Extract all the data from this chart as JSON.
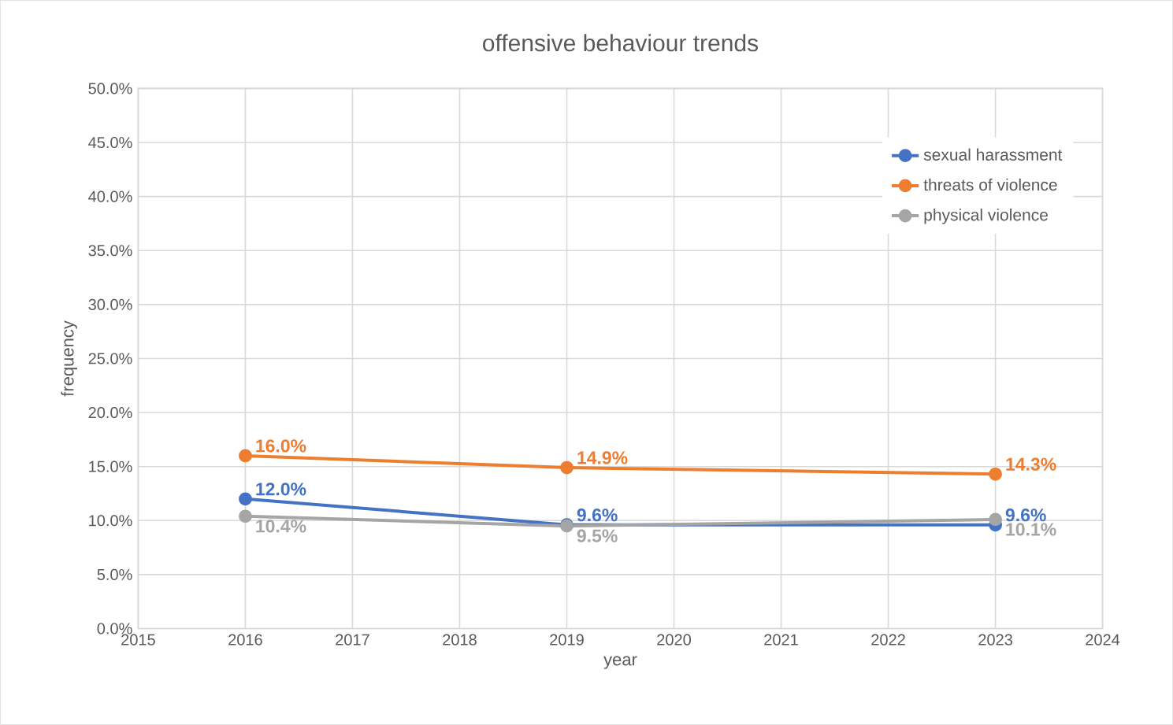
{
  "chart_data": {
    "type": "line",
    "title": "offensive behaviour trends",
    "xlabel": "year",
    "ylabel": "frequency",
    "x": [
      2016,
      2019,
      2023
    ],
    "series": [
      {
        "name": "sexual harassment",
        "color": "#4472c4",
        "values": [
          12.0,
          9.6,
          9.6
        ],
        "value_labels": [
          "12.0%",
          "9.6%",
          "9.6%"
        ]
      },
      {
        "name": "threats of violence",
        "color": "#ed7d31",
        "values": [
          16.0,
          14.9,
          14.3
        ],
        "value_labels": [
          "16.0%",
          "14.9%",
          "14.3%"
        ]
      },
      {
        "name": "physical violence",
        "color": "#a5a5a5",
        "values": [
          10.4,
          9.5,
          10.1
        ],
        "value_labels": [
          "10.4%",
          "9.5%",
          "10.1%"
        ]
      }
    ],
    "xlim": [
      2015,
      2024
    ],
    "xticks": [
      2015,
      2016,
      2017,
      2018,
      2019,
      2020,
      2021,
      2022,
      2023,
      2024
    ],
    "ylim": [
      0,
      50
    ],
    "yticks": [
      {
        "value": 0,
        "label": "0.0%"
      },
      {
        "value": 5,
        "label": "5.0%"
      },
      {
        "value": 10,
        "label": "10.0%"
      },
      {
        "value": 15,
        "label": "15.0%"
      },
      {
        "value": 20,
        "label": "20.0%"
      },
      {
        "value": 25,
        "label": "25.0%"
      },
      {
        "value": 30,
        "label": "30.0%"
      },
      {
        "value": 35,
        "label": "35.0%"
      },
      {
        "value": 40,
        "label": "40.0%"
      },
      {
        "value": 45,
        "label": "45.0%"
      },
      {
        "value": 50,
        "label": "50.0%"
      }
    ],
    "grid": true,
    "legend": "top right",
    "marker": "circle",
    "line_style": "solid"
  }
}
